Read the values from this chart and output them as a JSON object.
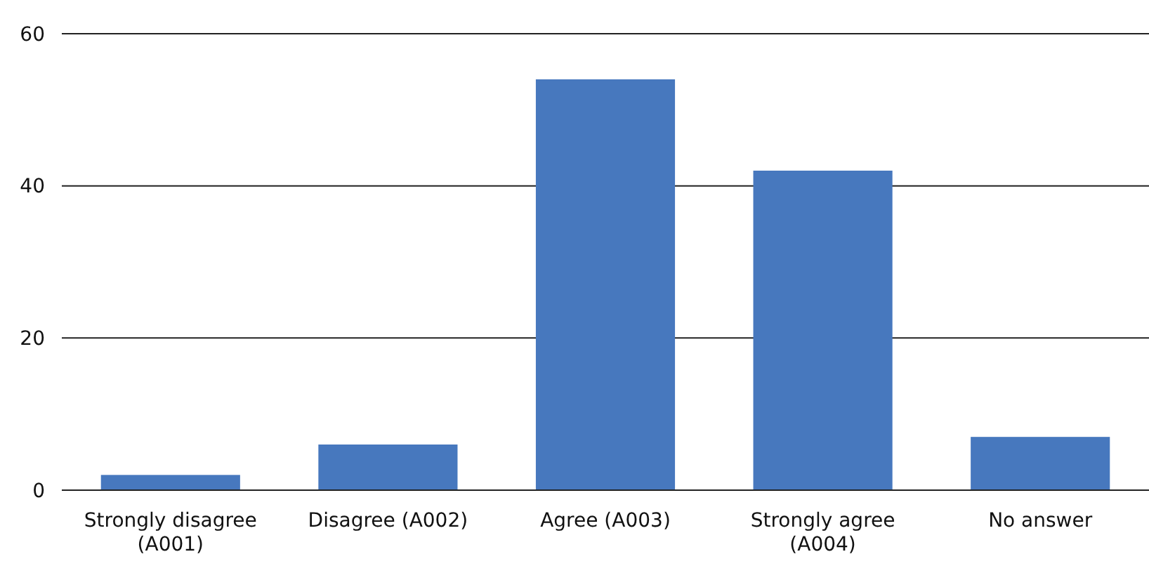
{
  "chart_data": {
    "type": "bar",
    "categories": [
      "Strongly disagree (A001)",
      "Disagree (A002)",
      "Agree (A003)",
      "Strongly agree (A004)",
      "No answer"
    ],
    "values": [
      2,
      6,
      54,
      42,
      7
    ],
    "color": "#4778be",
    "ylim": [
      0,
      60
    ],
    "yticks": [
      0,
      20,
      40,
      60
    ],
    "grid": "y"
  }
}
